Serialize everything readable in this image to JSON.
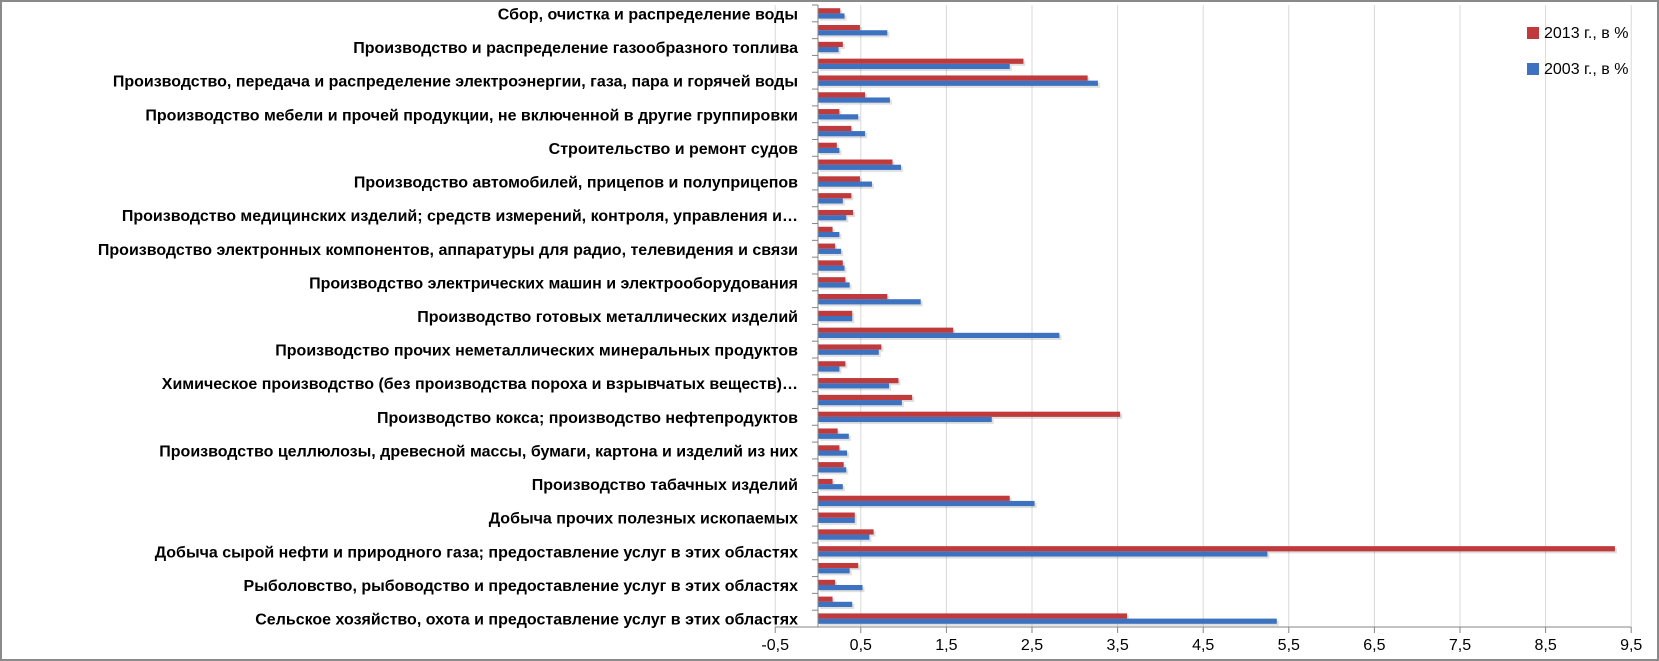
{
  "chart_data": {
    "type": "bar",
    "orientation": "horizontal",
    "title": "",
    "xlabel": "",
    "ylabel": "",
    "xlim": [
      -0.5,
      9.5
    ],
    "x_ticks": [
      "-0,5",
      "0,5",
      "1,5",
      "2,5",
      "3,5",
      "4,5",
      "5,5",
      "6,5",
      "7,5",
      "8,5",
      "9,5"
    ],
    "x_tick_values": [
      -0.5,
      0.5,
      1.5,
      2.5,
      3.5,
      4.5,
      5.5,
      6.5,
      7.5,
      8.5,
      9.5
    ],
    "grid": true,
    "legend_position": "top-right",
    "categories": [
      "Сбор, очистка и распределение воды",
      "",
      "Производство и распределение газообразного топлива",
      "",
      "Производство, передача и распределение электроэнергии, газа, пара и горячей воды",
      "",
      "Производство мебели и прочей продукции, не включенной в другие группировки",
      "",
      "Строительство и ремонт судов",
      "",
      "Производство автомобилей, прицепов и полуприцепов",
      "",
      "Производство медицинских изделий; средств измерений, контроля, управления и…",
      "",
      "Производство электронных компонентов, аппаратуры для радио, телевидения и связи",
      "",
      "Производство электрических машин и электрооборудования",
      "",
      "Производство готовых металлических изделий",
      "",
      "Производство прочих неметаллических минеральных продуктов",
      "",
      "Химическое производство (без производства пороха и взрывчатых веществ)…",
      "",
      "Производство кокса; производство нефтепродуктов",
      "",
      "Производство целлюлозы, древесной массы, бумаги, картона и изделий из них",
      "",
      "Производство табачных изделий",
      "",
      "Добыча прочих полезных ископаемых",
      "",
      "Добыча сырой нефти и природного газа; предоставление услуг в этих областях",
      "",
      "Рыболовство, рыбоводство и предоставление услуг в этих областях",
      "",
      "Сельское хозяйство, охота и предоставление услуг в этих областях"
    ],
    "series": [
      {
        "name": "2013 г., в %",
        "color": "#c0393b",
        "values": [
          0.26,
          0.49,
          0.29,
          2.4,
          3.15,
          0.55,
          0.25,
          0.39,
          0.22,
          0.87,
          0.49,
          0.39,
          0.41,
          0.17,
          0.2,
          0.29,
          0.32,
          0.81,
          0.4,
          1.58,
          0.74,
          0.32,
          0.94,
          1.1,
          3.53,
          0.23,
          0.25,
          0.3,
          0.17,
          2.24,
          0.43,
          0.65,
          9.31,
          0.47,
          0.2,
          0.17,
          3.61
        ]
      },
      {
        "name": "2003 г., в %",
        "color": "#3d72c0",
        "values": [
          0.31,
          0.81,
          0.24,
          2.24,
          3.27,
          0.84,
          0.47,
          0.55,
          0.25,
          0.97,
          0.63,
          0.29,
          0.33,
          0.25,
          0.27,
          0.31,
          0.37,
          1.2,
          0.4,
          2.82,
          0.71,
          0.25,
          0.83,
          0.98,
          2.03,
          0.36,
          0.34,
          0.33,
          0.29,
          2.53,
          0.43,
          0.6,
          5.25,
          0.37,
          0.52,
          0.4,
          5.36
        ]
      }
    ]
  }
}
